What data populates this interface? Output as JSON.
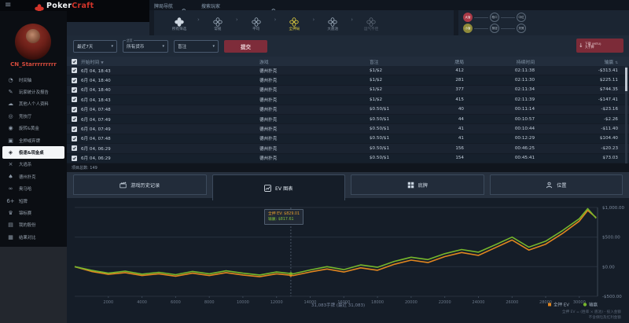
{
  "brand": {
    "poker": "Poker",
    "craft": "Craft"
  },
  "topbar": {
    "hand_nav_placeholder": "牌局导航",
    "player_search_placeholder": "搜索玩家"
  },
  "hand_nav": {
    "items": [
      {
        "label": "所有筛选",
        "state": "filled"
      },
      {
        "label": "常规",
        "state": "normal"
      },
      {
        "label": "平均",
        "state": "normal"
      },
      {
        "label": "全押局",
        "state": "active"
      },
      {
        "label": "大底池",
        "state": "normal"
      },
      {
        "label": "运气不佳",
        "state": "dim"
      }
    ]
  },
  "position_filters": {
    "row1": [
      {
        "label": "大盲",
        "variant": "red"
      },
      {
        "label": "枪口",
        "variant": "outline"
      },
      {
        "label": "中位",
        "variant": "outline"
      }
    ],
    "row2": [
      {
        "label": "小盲",
        "variant": "olive"
      },
      {
        "label": "按钮",
        "variant": "outline"
      },
      {
        "label": "关煞",
        "variant": "outline"
      }
    ]
  },
  "filters": {
    "date_range": "最近7天",
    "currency_label": "货币",
    "currency": "所有货币",
    "blinds": "盲注",
    "submit_label": "提交",
    "download_line1": "下载 (MTU)",
    "download_line2": "大手牌"
  },
  "sidebar": {
    "username": "CN_Starrrrrrrrr",
    "items": [
      {
        "icon": "timeline-icon",
        "label": "时间轴"
      },
      {
        "icon": "stats-report-icon",
        "label": "玩家统计及报告"
      },
      {
        "icon": "profile-icon",
        "label": "其他人个人资料"
      },
      {
        "icon": "hall-icon",
        "label": "竞技厅"
      },
      {
        "icon": "spin-gold-icon",
        "label": "旋转&黄金"
      },
      {
        "icon": "all-in-fold-icon",
        "label": "全押或弃牌"
      },
      {
        "icon": "rush-cash-icon",
        "label": "极速&现金桌",
        "selected": true
      },
      {
        "icon": "battle-royale-icon",
        "label": "大逃杀"
      },
      {
        "icon": "holdem-icon",
        "label": "德州扑克"
      },
      {
        "icon": "omaha-icon",
        "label": "奥马哈"
      },
      {
        "icon": "short-deck-icon",
        "label": "短牌"
      },
      {
        "icon": "tournament-icon",
        "label": "锦标赛"
      },
      {
        "icon": "my-stake-icon",
        "label": "我的股份"
      },
      {
        "icon": "results-icon",
        "label": "结果对比"
      }
    ]
  },
  "table": {
    "headers": [
      "开始时间",
      "游戏",
      "盲注",
      "牌局",
      "持续时间",
      "输赢"
    ],
    "rows": [
      {
        "time": "6月 04, 18:43",
        "game": "德州扑克",
        "blinds": "$1/$2",
        "hands": "412",
        "duration": "02:11:38",
        "win": "-$313.41"
      },
      {
        "time": "6月 04, 18:40",
        "game": "德州扑克",
        "blinds": "$1/$2",
        "hands": "281",
        "duration": "02:11:30",
        "win": "$225.11"
      },
      {
        "time": "6月 04, 18:40",
        "game": "德州扑克",
        "blinds": "$1/$2",
        "hands": "377",
        "duration": "02:11:34",
        "win": "$744.35"
      },
      {
        "time": "6月 04, 18:43",
        "game": "德州扑克",
        "blinds": "$1/$2",
        "hands": "415",
        "duration": "02:11:39",
        "win": "-$147.41"
      },
      {
        "time": "6月 04, 07:48",
        "game": "德州扑克",
        "blinds": "$0.50/$1",
        "hands": "40",
        "duration": "00:11:14",
        "win": "-$23.16"
      },
      {
        "time": "6月 04, 07:49",
        "game": "德州扑克",
        "blinds": "$0.50/$1",
        "hands": "44",
        "duration": "00:10:57",
        "win": "-$2.26"
      },
      {
        "time": "6月 04, 07:49",
        "game": "德州扑克",
        "blinds": "$0.50/$1",
        "hands": "41",
        "duration": "00:10:44",
        "win": "-$11.40"
      },
      {
        "time": "6月 04, 07:48",
        "game": "德州扑克",
        "blinds": "$0.50/$1",
        "hands": "41",
        "duration": "00:12:29",
        "win": "$104.40"
      },
      {
        "time": "6月 04, 06:29",
        "game": "德州扑克",
        "blinds": "$0.50/$1",
        "hands": "156",
        "duration": "00:46:25",
        "win": "-$20.23"
      },
      {
        "time": "6月 04, 06:29",
        "game": "德州扑克",
        "blinds": "$0.50/$1",
        "hands": "154",
        "duration": "00:45:41",
        "win": "$73.03"
      }
    ],
    "footer": "项目总数: 149"
  },
  "tabs": [
    {
      "icon": "clapperboard-icon",
      "label": "游戏历史记录"
    },
    {
      "icon": "line-chart-icon",
      "label": "EV 图表",
      "active": true
    },
    {
      "icon": "grid-icon",
      "label": "底牌"
    },
    {
      "icon": "person-icon",
      "label": "位置"
    }
  ],
  "chart_data": {
    "type": "line",
    "xlabel": "31,083手牌 (最近 31,083)",
    "xlim": [
      0,
      31083
    ],
    "ylim": [
      -500,
      1000
    ],
    "grid": true,
    "legend_position": "bottom-right",
    "y_tick_labels": [
      "$1,000.00",
      "$500.00",
      "$0.00",
      "-$500.00"
    ],
    "y_tick_values": [
      1000,
      500,
      0,
      -500
    ],
    "x_tick_values": [
      2000,
      4000,
      6000,
      8000,
      10000,
      12000,
      14000,
      16000,
      18000,
      20000,
      22000,
      24000,
      26000,
      28000,
      30000
    ],
    "x": [
      0,
      1000,
      2000,
      3000,
      4000,
      5000,
      6000,
      7000,
      8000,
      9000,
      10000,
      11000,
      12000,
      13000,
      14000,
      15000,
      16000,
      17000,
      18000,
      19000,
      20000,
      21000,
      22000,
      23000,
      24000,
      25000,
      26000,
      27000,
      28000,
      29000,
      30000,
      30500,
      31000
    ],
    "series": [
      {
        "name": "全押 EV",
        "color": "#e1861f",
        "values": [
          0,
          -80,
          -130,
          -100,
          -150,
          -120,
          -160,
          -110,
          -150,
          -100,
          -140,
          -170,
          -120,
          -150,
          -90,
          -40,
          -90,
          -20,
          -60,
          40,
          110,
          70,
          170,
          240,
          190,
          320,
          450,
          280,
          380,
          560,
          770,
          950,
          829
        ]
      },
      {
        "name": "输赢",
        "color": "#76b62c",
        "values": [
          0,
          -60,
          -110,
          -75,
          -125,
          -95,
          -135,
          -80,
          -120,
          -70,
          -110,
          -140,
          -90,
          -120,
          -55,
          0,
          -50,
          30,
          -10,
          90,
          160,
          120,
          220,
          290,
          245,
          370,
          500,
          330,
          430,
          610,
          810,
          980,
          818
        ]
      }
    ]
  },
  "chart_tooltip": {
    "line1": "全押 EV: $829.01",
    "line2": "输赢: $817.61",
    "x_hand": 12850
  },
  "chart_footnotes": [
    "全押 EV = (胜率 × 底池) - 投入金额",
    "不含保险及红利金额"
  ]
}
